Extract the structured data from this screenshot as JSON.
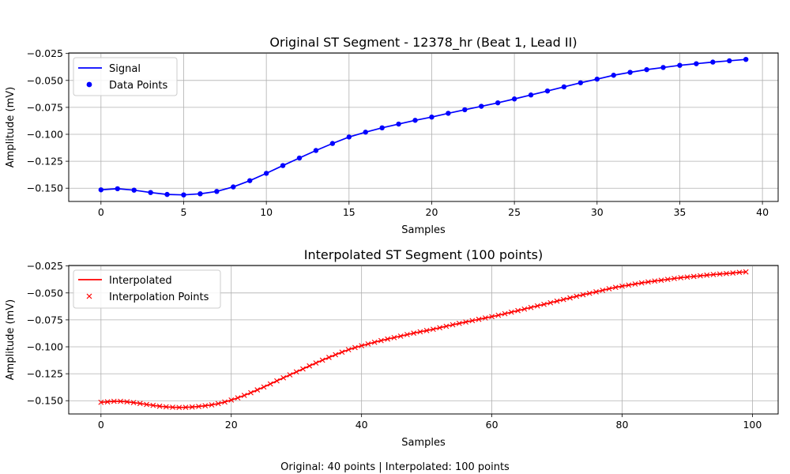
{
  "footer_text": "Original: 40 points | Interpolated: 100 points",
  "chart_data": [
    {
      "type": "line",
      "title": "Original ST Segment - 12378_hr (Beat 1, Lead II)",
      "xlabel": "Samples",
      "ylabel": "Amplitude (mV)",
      "xlim": [
        -1.95,
        40.95
      ],
      "ylim": [
        -0.1623,
        -0.0245
      ],
      "xticks": [
        0,
        5,
        10,
        15,
        20,
        25,
        30,
        35,
        40
      ],
      "yticks": [
        -0.15,
        -0.125,
        -0.1,
        -0.075,
        -0.05,
        -0.025
      ],
      "grid": true,
      "legend_position": "upper-left",
      "series": [
        {
          "name": "Signal",
          "style": "line",
          "color": "#0000ff"
        },
        {
          "name": "Data Points",
          "style": "marker-circle",
          "color": "#0000ff"
        }
      ],
      "x": [
        0,
        1,
        2,
        3,
        4,
        5,
        6,
        7,
        8,
        9,
        10,
        11,
        12,
        13,
        14,
        15,
        16,
        17,
        18,
        19,
        20,
        21,
        22,
        23,
        24,
        25,
        26,
        27,
        28,
        29,
        30,
        31,
        32,
        33,
        34,
        35,
        36,
        37,
        38,
        39
      ],
      "y": [
        -0.1515,
        -0.1505,
        -0.1518,
        -0.154,
        -0.1558,
        -0.1562,
        -0.1552,
        -0.153,
        -0.1488,
        -0.143,
        -0.1362,
        -0.129,
        -0.122,
        -0.115,
        -0.1085,
        -0.1025,
        -0.098,
        -0.094,
        -0.0905,
        -0.087,
        -0.084,
        -0.0805,
        -0.0772,
        -0.074,
        -0.0708,
        -0.0672,
        -0.0635,
        -0.0598,
        -0.056,
        -0.0522,
        -0.0488,
        -0.0452,
        -0.0425,
        -0.04,
        -0.038,
        -0.036,
        -0.0345,
        -0.033,
        -0.0318,
        -0.0305
      ]
    },
    {
      "type": "line",
      "title": "Interpolated ST Segment (100 points)",
      "xlabel": "Samples",
      "ylabel": "Amplitude (mV)",
      "xlim": [
        -4.95,
        103.95
      ],
      "ylim": [
        -0.1623,
        -0.0245
      ],
      "xticks": [
        0,
        20,
        40,
        60,
        80,
        100
      ],
      "yticks": [
        -0.15,
        -0.125,
        -0.1,
        -0.075,
        -0.05,
        -0.025
      ],
      "grid": true,
      "legend_position": "upper-left",
      "series": [
        {
          "name": "Interpolated",
          "style": "line",
          "color": "#ff0000"
        },
        {
          "name": "Interpolation Points",
          "style": "marker-x",
          "color": "#ff0000"
        }
      ],
      "x_count": 100,
      "y_source": "resampled from original 40-point signal onto 100 evenly spaced samples"
    }
  ]
}
